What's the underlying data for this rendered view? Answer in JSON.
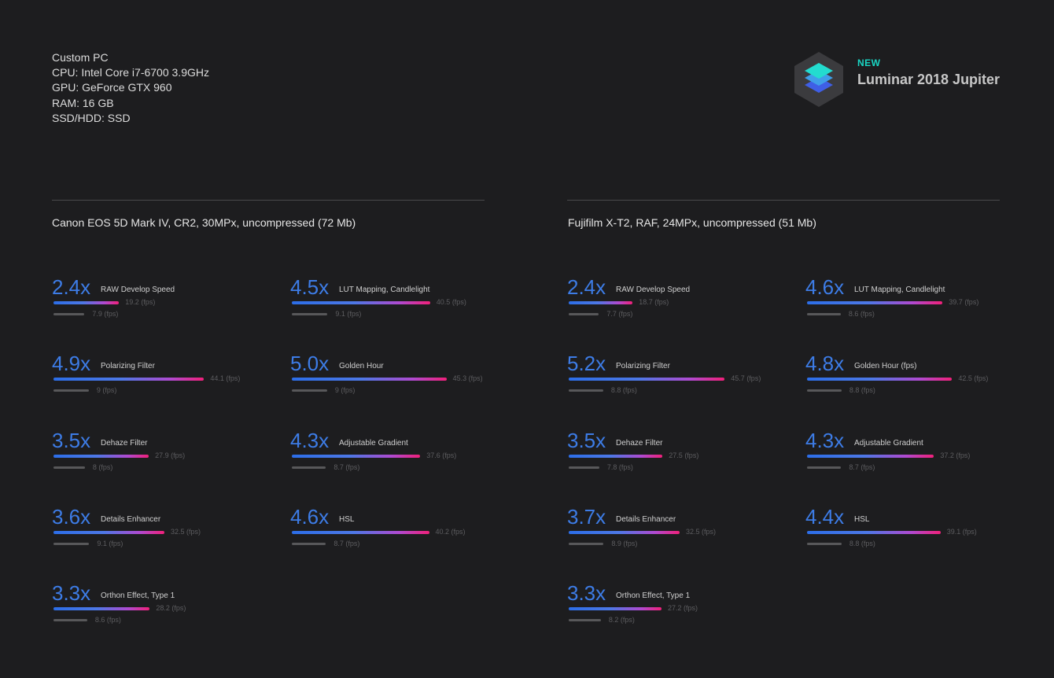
{
  "system": {
    "lines": [
      "Custom PC",
      "CPU: Intel Core i7-6700 3.9GHz",
      "GPU: GeForce GTX 960",
      "RAM: 16 GB",
      "SSD/HDD: SSD"
    ]
  },
  "brand": {
    "badge": "NEW",
    "name": "Luminar 2018 Jupiter",
    "icon": "luminar-layers-logo"
  },
  "colors": {
    "background": "#1d1d1f",
    "multiplier": "#3d7ce6",
    "bar_gradient": [
      "#2c6ee8",
      "#f0207a"
    ],
    "old_bar": "#58585a",
    "badge": "#19d6c4"
  },
  "chart_data": [
    {
      "type": "bar",
      "title": "Canon EOS 5D Mark IV, CR2, 30MPx, uncompressed (72 Mb)",
      "unit": "(fps)",
      "items": [
        {
          "multiplier": "2.4x",
          "label": "RAW Develop Speed",
          "new_fps": 19.2,
          "old_fps": 7.9,
          "new_text": "19.2 (fps)",
          "old_text": "7.9 (fps)"
        },
        {
          "multiplier": "4.5x",
          "label": "LUT Mapping, Candlelight",
          "new_fps": 40.5,
          "old_fps": 9.1,
          "new_text": "40.5 (fps)",
          "old_text": "9.1 (fps)"
        },
        {
          "multiplier": "4.9x",
          "label": "Polarizing Filter",
          "new_fps": 44.1,
          "old_fps": 9,
          "new_text": "44.1 (fps)",
          "old_text": "9 (fps)"
        },
        {
          "multiplier": "5.0x",
          "label": "Golden Hour",
          "new_fps": 45.3,
          "old_fps": 9,
          "new_text": "45.3 (fps)",
          "old_text": "9 (fps)"
        },
        {
          "multiplier": "3.5x",
          "label": "Dehaze Filter",
          "new_fps": 27.9,
          "old_fps": 8,
          "new_text": "27.9 (fps)",
          "old_text": "8 (fps)"
        },
        {
          "multiplier": "4.3x",
          "label": "Adjustable Gradient",
          "new_fps": 37.6,
          "old_fps": 8.7,
          "new_text": "37.6 (fps)",
          "old_text": "8.7 (fps)"
        },
        {
          "multiplier": "3.6x",
          "label": "Details Enhancer",
          "new_fps": 32.5,
          "old_fps": 9.1,
          "new_text": "32.5 (fps)",
          "old_text": "9.1 (fps)"
        },
        {
          "multiplier": "4.6x",
          "label": "HSL",
          "new_fps": 40.2,
          "old_fps": 8.7,
          "new_text": "40.2 (fps)",
          "old_text": "8.7 (fps)"
        },
        {
          "multiplier": "3.3x",
          "label": "Orthon Effect, Type 1",
          "new_fps": 28.2,
          "old_fps": 8.6,
          "new_text": "28.2 (fps)",
          "old_text": "8.6 (fps)"
        }
      ]
    },
    {
      "type": "bar",
      "title": "Fujifilm X-T2, RAF, 24MPx, uncompressed (51 Mb)",
      "unit": "(fps)",
      "items": [
        {
          "multiplier": "2.4x",
          "label": "RAW Develop Speed",
          "new_fps": 18.7,
          "old_fps": 7.7,
          "new_text": "18.7 (fps)",
          "old_text": "7.7 (fps)"
        },
        {
          "multiplier": "4.6x",
          "label": "LUT Mapping, Candlelight",
          "new_fps": 39.7,
          "old_fps": 8.6,
          "new_text": "39.7 (fps)",
          "old_text": "8.6 (fps)"
        },
        {
          "multiplier": "5.2x",
          "label": "Polarizing Filter",
          "new_fps": 45.7,
          "old_fps": 8.8,
          "new_text": "45.7 (fps)",
          "old_text": "8.8 (fps)"
        },
        {
          "multiplier": "4.8x",
          "label": "Golden Hour (fps)",
          "new_fps": 42.5,
          "old_fps": 8.8,
          "new_text": "42.5 (fps)",
          "old_text": "8.8 (fps)"
        },
        {
          "multiplier": "3.5x",
          "label": "Dehaze Filter",
          "new_fps": 27.5,
          "old_fps": 7.8,
          "new_text": "27.5 (fps)",
          "old_text": "7.8 (fps)"
        },
        {
          "multiplier": "4.3x",
          "label": "Adjustable Gradient",
          "new_fps": 37.2,
          "old_fps": 8.7,
          "new_text": "37.2 (fps)",
          "old_text": "8.7 (fps)"
        },
        {
          "multiplier": "3.7x",
          "label": "Details Enhancer",
          "new_fps": 32.5,
          "old_fps": 8.9,
          "new_text": "32.5 (fps)",
          "old_text": "8.9 (fps)"
        },
        {
          "multiplier": "4.4x",
          "label": "HSL",
          "new_fps": 39.1,
          "old_fps": 8.8,
          "new_text": "39.1 (fps)",
          "old_text": "8.8 (fps)"
        },
        {
          "multiplier": "3.3x",
          "label": "Orthon Effect, Type 1",
          "new_fps": 27.2,
          "old_fps": 8.2,
          "new_text": "27.2 (fps)",
          "old_text": "8.2 (fps)"
        }
      ]
    }
  ]
}
